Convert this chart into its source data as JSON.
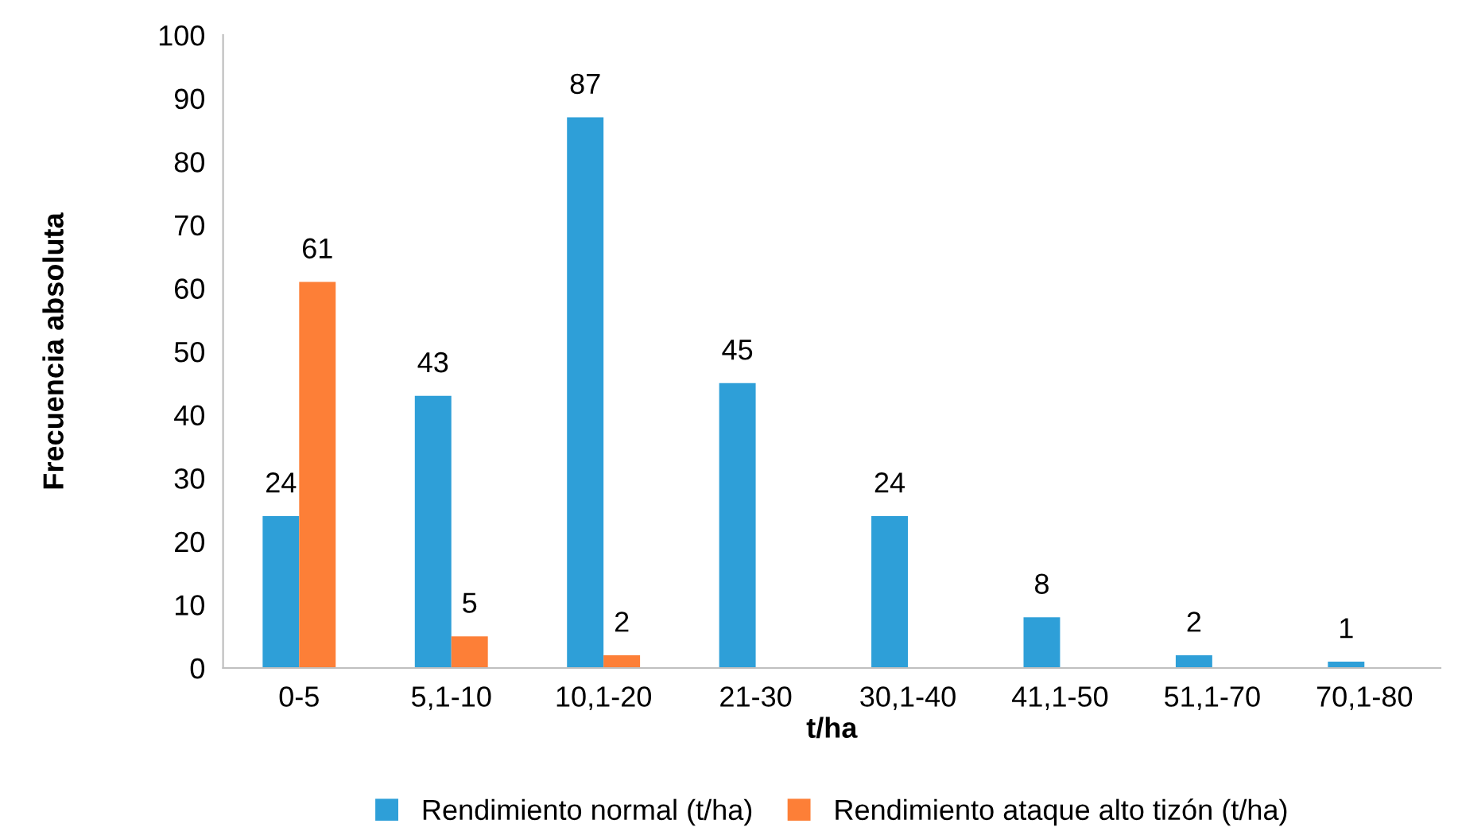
{
  "chart_data": {
    "type": "bar",
    "xlabel": "t/ha",
    "ylabel": "Frecuencia absoluta",
    "categories": [
      "0-5",
      "5,1-10",
      "10,1-20",
      "21-30",
      "30,1-40",
      "41,1-50",
      "51,1-70",
      "70,1-80"
    ],
    "series": [
      {
        "name": "Rendimiento normal (t/ha)",
        "color": "#2e9fd8",
        "values": [
          24,
          43,
          87,
          45,
          24,
          8,
          2,
          1
        ]
      },
      {
        "name": "Rendimiento ataque alto tizón (t/ha)",
        "color": "#fd7f37",
        "values": [
          61,
          5,
          2,
          null,
          null,
          null,
          null,
          null
        ]
      }
    ],
    "ylim": [
      0,
      100
    ],
    "yticks": [
      0,
      10,
      20,
      30,
      40,
      50,
      60,
      70,
      80,
      90,
      100
    ],
    "grid": false,
    "legend": "bottom",
    "data_labels": true
  }
}
